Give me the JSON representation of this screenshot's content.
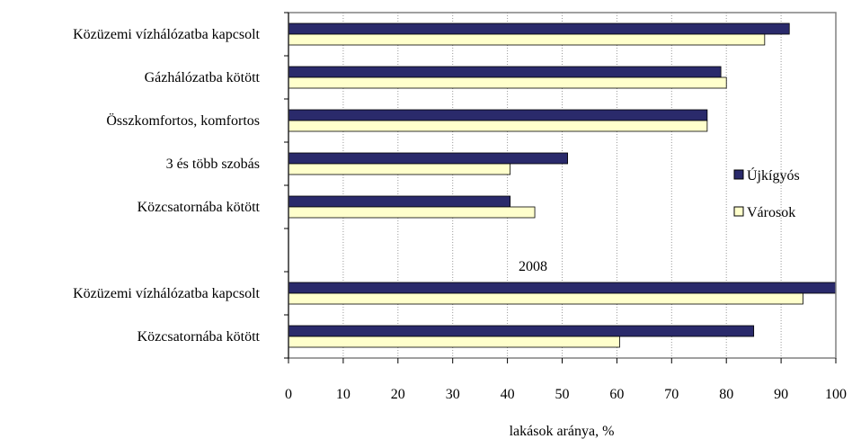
{
  "chart_data": {
    "type": "bar",
    "orientation": "horizontal",
    "categories": [
      "Közüzemi vízhálózatba kapcsolt",
      "Gázhálózatba kötött",
      "Összkomfortos, komfortos",
      "3 és több szobás",
      "Közcsatornába kötött",
      "",
      "Közüzemi vízhálózatba kapcsolt",
      "Közcsatornába kötött"
    ],
    "series": [
      {
        "name": "Újkígyós",
        "color": "#2a2a6b",
        "values": [
          91.5,
          79,
          76.5,
          51,
          40.5,
          null,
          100,
          85
        ]
      },
      {
        "name": "Városok",
        "color": "#ffffcc",
        "values": [
          87,
          80,
          76.5,
          40.5,
          45,
          null,
          94,
          60.5
        ]
      }
    ],
    "annotations": [
      "2008"
    ],
    "xlabel": "lakások aránya, %",
    "ylabel": "",
    "title": "",
    "xlim": [
      0,
      100
    ],
    "xticks": [
      0,
      10,
      20,
      30,
      40,
      50,
      60,
      70,
      80,
      90,
      100
    ],
    "grid": "vertical dotted",
    "legend_position": "right"
  }
}
